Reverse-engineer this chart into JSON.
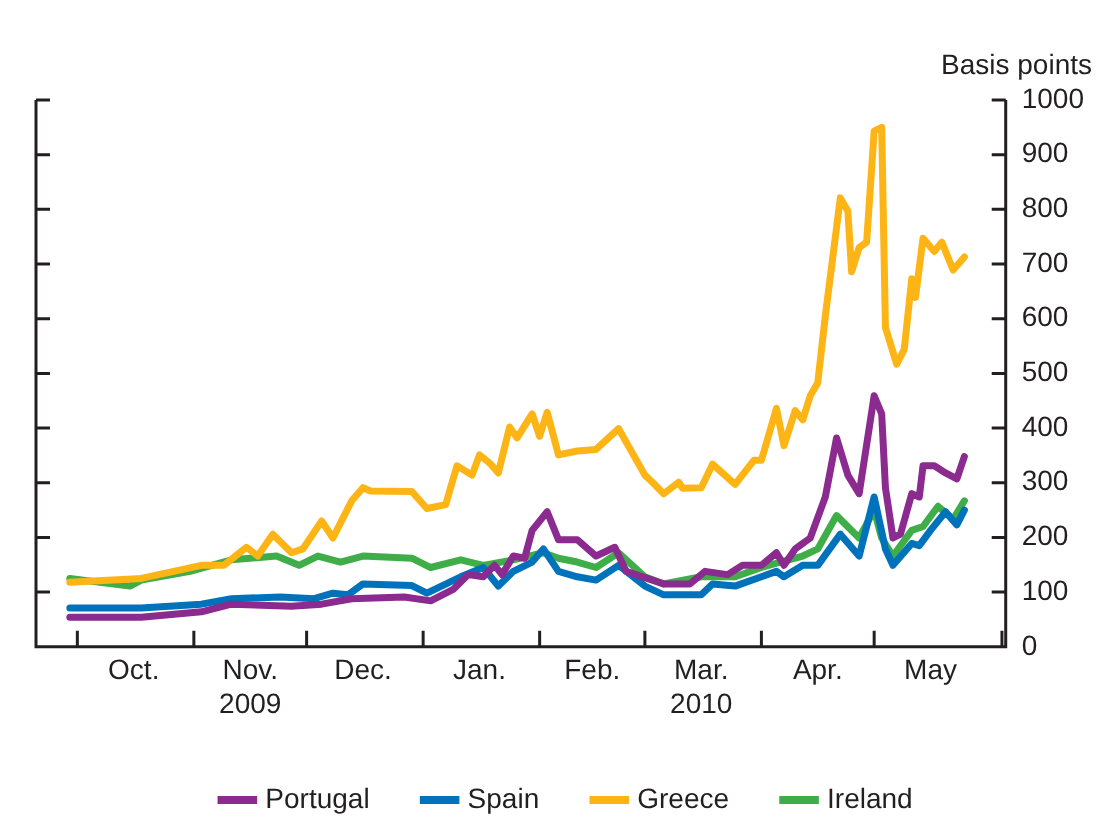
{
  "chart_data": {
    "type": "line",
    "ylabel": "Basis points",
    "legend": "bottom",
    "grid": false,
    "marker": "none",
    "line_style": "solid",
    "xlim": [
      "2009-09-20",
      "2010-06-05"
    ],
    "ylim": [
      0,
      1000
    ],
    "yticks": [
      0,
      100,
      200,
      300,
      400,
      500,
      600,
      700,
      800,
      900,
      1000
    ],
    "xticks": [
      {
        "value": "2009-10-01",
        "label": null
      },
      {
        "value": "2009-10-16",
        "label": "Oct."
      },
      {
        "value": "2009-11-01",
        "label": null
      },
      {
        "value": "2009-11-16",
        "label": "Nov.\n2009"
      },
      {
        "value": "2009-12-01",
        "label": null
      },
      {
        "value": "2009-12-16",
        "label": "Dec."
      },
      {
        "value": "2010-01-01",
        "label": null
      },
      {
        "value": "2010-01-16",
        "label": "Jan."
      },
      {
        "value": "2010-02-01",
        "label": null
      },
      {
        "value": "2010-02-15",
        "label": "Feb."
      },
      {
        "value": "2010-03-01",
        "label": null
      },
      {
        "value": "2010-03-16",
        "label": "Mar.\n2010"
      },
      {
        "value": "2010-04-01",
        "label": null
      },
      {
        "value": "2010-04-16",
        "label": "Apr."
      },
      {
        "value": "2010-05-01",
        "label": null
      },
      {
        "value": "2010-05-16",
        "label": "May"
      },
      {
        "value": "2010-06-04",
        "label": null
      }
    ],
    "series": [
      {
        "name": "Portugal",
        "color": "#8b2a8f",
        "x": [
          "2009-09-29",
          "2009-10-18",
          "2009-11-03",
          "2009-11-11",
          "2009-11-27",
          "2009-12-05",
          "2009-12-13",
          "2009-12-27",
          "2010-01-03",
          "2010-01-09",
          "2010-01-13",
          "2010-01-17",
          "2010-01-20",
          "2010-01-22",
          "2010-01-25",
          "2010-01-28",
          "2010-01-30",
          "2010-02-03",
          "2010-02-06",
          "2010-02-11",
          "2010-02-16",
          "2010-02-21",
          "2010-02-24",
          "2010-03-06",
          "2010-03-13",
          "2010-03-17",
          "2010-03-23",
          "2010-03-27",
          "2010-04-01",
          "2010-04-05",
          "2010-04-07",
          "2010-04-10",
          "2010-04-14",
          "2010-04-18",
          "2010-04-21",
          "2010-04-24",
          "2010-04-27",
          "2010-05-01",
          "2010-05-03",
          "2010-05-04",
          "2010-05-06",
          "2010-05-08",
          "2010-05-11",
          "2010-05-13",
          "2010-05-14",
          "2010-05-17",
          "2010-05-20",
          "2010-05-23",
          "2010-05-25"
        ],
        "values": [
          54,
          54,
          64,
          78,
          74,
          78,
          88,
          91,
          84,
          105,
          132,
          128,
          149,
          132,
          166,
          162,
          213,
          247,
          196,
          196,
          166,
          182,
          138,
          115,
          115,
          138,
          132,
          149,
          149,
          172,
          149,
          179,
          199,
          274,
          382,
          314,
          280,
          459,
          426,
          291,
          199,
          206,
          280,
          274,
          331,
          331,
          318,
          307,
          348
        ]
      },
      {
        "name": "Spain",
        "color": "#0072bc",
        "x": [
          "2009-09-29",
          "2009-10-18",
          "2009-11-03",
          "2009-11-11",
          "2009-11-24",
          "2009-12-03",
          "2009-12-08",
          "2009-12-12",
          "2009-12-16",
          "2009-12-29",
          "2010-01-02",
          "2010-01-11",
          "2010-01-17",
          "2010-01-21",
          "2010-01-25",
          "2010-01-30",
          "2010-02-02",
          "2010-02-06",
          "2010-02-11",
          "2010-02-16",
          "2010-02-22",
          "2010-03-01",
          "2010-03-06",
          "2010-03-16",
          "2010-03-19",
          "2010-03-25",
          "2010-04-01",
          "2010-04-05",
          "2010-04-07",
          "2010-04-12",
          "2010-04-16",
          "2010-04-22",
          "2010-04-27",
          "2010-05-01",
          "2010-05-04",
          "2010-05-06",
          "2010-05-11",
          "2010-05-13",
          "2010-05-16",
          "2010-05-20",
          "2010-05-23",
          "2010-05-25"
        ],
        "values": [
          71,
          71,
          78,
          88,
          91,
          88,
          98,
          95,
          115,
          112,
          98,
          128,
          145,
          111,
          138,
          155,
          179,
          138,
          128,
          122,
          149,
          111,
          95,
          95,
          115,
          111,
          128,
          138,
          128,
          149,
          149,
          206,
          166,
          274,
          179,
          149,
          189,
          185,
          213,
          247,
          223,
          250
        ]
      },
      {
        "name": "Greece",
        "color": "#fdb515",
        "x": [
          "2009-09-29",
          "2009-10-18",
          "2009-11-03",
          "2009-11-09",
          "2009-11-15",
          "2009-11-18",
          "2009-11-22",
          "2009-11-27",
          "2009-11-30",
          "2009-12-05",
          "2009-12-08",
          "2009-12-13",
          "2009-12-16",
          "2009-12-18",
          "2009-12-29",
          "2010-01-02",
          "2010-01-07",
          "2010-01-10",
          "2010-01-14",
          "2010-01-16",
          "2010-01-19",
          "2010-01-21",
          "2010-01-24",
          "2010-01-26",
          "2010-01-30",
          "2010-02-01",
          "2010-02-03",
          "2010-02-06",
          "2010-02-11",
          "2010-02-16",
          "2010-02-22",
          "2010-03-01",
          "2010-03-03",
          "2010-03-06",
          "2010-03-10",
          "2010-03-11",
          "2010-03-16",
          "2010-03-19",
          "2010-03-25",
          "2010-03-30",
          "2010-04-01",
          "2010-04-05",
          "2010-04-07",
          "2010-04-10",
          "2010-04-12",
          "2010-04-14",
          "2010-04-16",
          "2010-04-18",
          "2010-04-22",
          "2010-04-24",
          "2010-04-25",
          "2010-04-27",
          "2010-04-29",
          "2010-05-01",
          "2010-05-03",
          "2010-05-04",
          "2010-05-07",
          "2010-05-09",
          "2010-05-11",
          "2010-05-12",
          "2010-05-14",
          "2010-05-17",
          "2010-05-19",
          "2010-05-22",
          "2010-05-25"
        ],
        "values": [
          118,
          125,
          149,
          149,
          182,
          166,
          206,
          172,
          179,
          230,
          199,
          267,
          291,
          285,
          284,
          253,
          260,
          331,
          314,
          351,
          334,
          318,
          402,
          382,
          426,
          385,
          429,
          351,
          358,
          361,
          399,
          314,
          301,
          280,
          301,
          290,
          291,
          334,
          297,
          341,
          341,
          436,
          368,
          432,
          415,
          459,
          483,
          605,
          821,
          797,
          686,
          730,
          740,
          943,
          950,
          584,
          517,
          544,
          673,
          639,
          747,
          723,
          740,
          689,
          713
        ]
      },
      {
        "name": "Ireland",
        "color": "#3fae49",
        "x": [
          "2009-09-29",
          "2009-10-15",
          "2009-10-18",
          "2009-10-31",
          "2009-11-11",
          "2009-11-23",
          "2009-11-29",
          "2009-12-04",
          "2009-12-10",
          "2009-12-16",
          "2009-12-29",
          "2010-01-03",
          "2010-01-11",
          "2010-01-17",
          "2010-01-25",
          "2010-02-02",
          "2010-02-06",
          "2010-02-11",
          "2010-02-16",
          "2010-02-22",
          "2010-03-01",
          "2010-03-06",
          "2010-03-16",
          "2010-03-25",
          "2010-04-01",
          "2010-04-06",
          "2010-04-12",
          "2010-04-16",
          "2010-04-21",
          "2010-04-27",
          "2010-05-01",
          "2010-05-03",
          "2010-05-06",
          "2010-05-11",
          "2010-05-14",
          "2010-05-18",
          "2010-05-22",
          "2010-05-25"
        ],
        "values": [
          125,
          111,
          122,
          138,
          159,
          166,
          149,
          166,
          155,
          166,
          162,
          145,
          159,
          149,
          159,
          172,
          162,
          155,
          145,
          172,
          128,
          115,
          128,
          128,
          145,
          155,
          166,
          179,
          240,
          199,
          250,
          199,
          166,
          213,
          220,
          257,
          233,
          267
        ]
      }
    ]
  }
}
